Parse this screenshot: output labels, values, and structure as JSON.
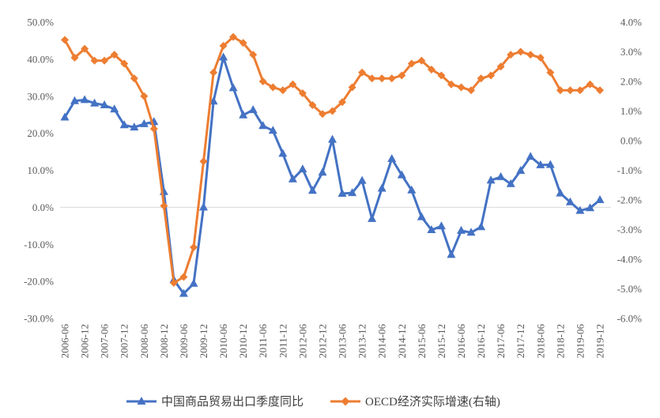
{
  "chart_data": {
    "type": "line",
    "title": "",
    "x": [
      "2006-06",
      "2006-09",
      "2006-12",
      "2007-03",
      "2007-06",
      "2007-09",
      "2007-12",
      "2008-03",
      "2008-06",
      "2008-09",
      "2008-12",
      "2009-03",
      "2009-06",
      "2009-09",
      "2009-12",
      "2010-03",
      "2010-06",
      "2010-09",
      "2010-12",
      "2011-03",
      "2011-06",
      "2011-09",
      "2011-12",
      "2012-03",
      "2012-06",
      "2012-09",
      "2012-12",
      "2013-03",
      "2013-06",
      "2013-09",
      "2013-12",
      "2014-03",
      "2014-06",
      "2014-09",
      "2014-12",
      "2015-03",
      "2015-06",
      "2015-09",
      "2015-12",
      "2016-03",
      "2016-06",
      "2016-09",
      "2016-12",
      "2017-03",
      "2017-06",
      "2017-09",
      "2017-12",
      "2018-03",
      "2018-06",
      "2018-09",
      "2018-12",
      "2019-03",
      "2019-06",
      "2019-09",
      "2019-12"
    ],
    "x_tick_labels": [
      "2006-06",
      "2006-12",
      "2007-06",
      "2007-12",
      "2008-06",
      "2008-12",
      "2009-06",
      "2009-12",
      "2010-06",
      "2010-12",
      "2011-06",
      "2011-12",
      "2012-06",
      "2012-12",
      "2013-06",
      "2013-12",
      "2014-06",
      "2014-12",
      "2015-06",
      "2015-12",
      "2016-06",
      "2016-12",
      "2017-06",
      "2017-12",
      "2018-06",
      "2018-12",
      "2019-06",
      "2019-12"
    ],
    "y_left": {
      "ticks": [
        "50.0%",
        "40.0%",
        "30.0%",
        "20.0%",
        "10.0%",
        "0.0%",
        "-10.0%",
        "-20.0%",
        "-30.0%"
      ],
      "ylim": [
        -30,
        50
      ]
    },
    "y_right": {
      "ticks": [
        "4.0%",
        "3.0%",
        "2.0%",
        "1.0%",
        "0.0%",
        "-1.0%",
        "-2.0%",
        "-3.0%",
        "-4.0%",
        "-5.0%",
        "-6.0%"
      ],
      "ylim": [
        -6,
        4
      ]
    },
    "grid": false,
    "legend_position": "bottom",
    "series": [
      {
        "name": "中国商品贸易出口季度同比",
        "axis": "left",
        "color": "#4472C4",
        "marker": "triangle",
        "values": [
          24.3,
          28.7,
          29.0,
          28.1,
          27.6,
          26.5,
          22.2,
          21.6,
          22.5,
          23.1,
          4.2,
          -19.6,
          -23.3,
          -20.6,
          0.0,
          28.6,
          40.5,
          32.2,
          24.9,
          26.3,
          22.0,
          20.7,
          14.5,
          7.6,
          10.3,
          4.5,
          9.4,
          18.3,
          3.7,
          3.9,
          7.2,
          -3.1,
          5.1,
          13.1,
          8.7,
          4.6,
          -2.6,
          -6.1,
          -5.1,
          -12.8,
          -6.3,
          -6.8,
          -5.3,
          7.3,
          8.2,
          6.3,
          9.9,
          13.7,
          11.4,
          11.5,
          3.8,
          1.4,
          -0.9,
          -0.2,
          2.0
        ]
      },
      {
        "name": "OECD经济实际增速(右轴)",
        "axis": "right",
        "color": "#ED7D31",
        "marker": "diamond",
        "values": [
          3.4,
          2.8,
          3.1,
          2.7,
          2.7,
          2.9,
          2.6,
          2.1,
          1.5,
          0.4,
          -2.2,
          -4.8,
          -4.6,
          -3.6,
          -0.7,
          2.3,
          3.2,
          3.5,
          3.3,
          2.9,
          2.0,
          1.8,
          1.7,
          1.9,
          1.6,
          1.2,
          0.9,
          1.0,
          1.3,
          1.8,
          2.3,
          2.1,
          2.1,
          2.1,
          2.2,
          2.6,
          2.7,
          2.4,
          2.2,
          1.9,
          1.8,
          1.7,
          2.1,
          2.2,
          2.5,
          2.9,
          3.0,
          2.9,
          2.8,
          2.3,
          1.7,
          1.7,
          1.7,
          1.9,
          1.7
        ]
      }
    ]
  }
}
